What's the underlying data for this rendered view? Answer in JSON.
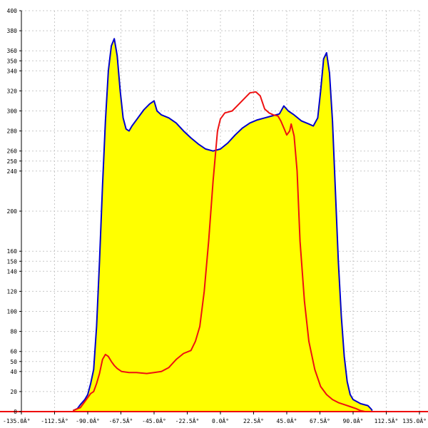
{
  "chart_data": {
    "type": "area",
    "title": "",
    "xlabel": "",
    "ylabel": "",
    "xlim": [
      -135,
      135
    ],
    "ylim": [
      0,
      400
    ],
    "grid": true,
    "x_ticks": [
      -135,
      -112.5,
      -90,
      -67.5,
      -45,
      -22.5,
      0,
      22.5,
      45,
      67.5,
      90,
      112.5,
      135
    ],
    "x_tick_labels": [
      "-135.0Â°",
      "-112.5Â°",
      "-90.0Â°",
      "-67.5Â°",
      "-45.0Â°",
      "-22.5Â°",
      "0.0Â°",
      "22.5Â°",
      "45.0Â°",
      "67.5Â°",
      "90.0Â°",
      "112.5Â°",
      "135.0Â°"
    ],
    "y_ticks": [
      0,
      20,
      40,
      50,
      60,
      80,
      100,
      120,
      140,
      150,
      160,
      200,
      240,
      250,
      260,
      280,
      300,
      320,
      340,
      350,
      360,
      380,
      400
    ],
    "y_tick_labels": [
      "0",
      "20",
      "40",
      "50",
      "60",
      "80",
      "100",
      "120",
      "140",
      "150",
      "160",
      "200",
      "240",
      "250",
      "260",
      "280",
      "300",
      "320",
      "340",
      "350",
      "360",
      "380",
      "400"
    ],
    "colors": {
      "fill": "#ffff00",
      "series_blue": "#0000cc",
      "series_red": "#ee1111",
      "grid": "#c8c8c8",
      "axis_x": "#ee0000",
      "axis_y": "#000000"
    },
    "series": [
      {
        "color": "#0000cc",
        "filled": true,
        "points": [
          [
            -100,
            1
          ],
          [
            -97,
            3
          ],
          [
            -95,
            7
          ],
          [
            -92,
            12
          ],
          [
            -90,
            17
          ],
          [
            -88,
            28
          ],
          [
            -86,
            42
          ],
          [
            -84,
            85
          ],
          [
            -82,
            150
          ],
          [
            -80,
            225
          ],
          [
            -78,
            290
          ],
          [
            -76,
            340
          ],
          [
            -74,
            365
          ],
          [
            -72,
            372
          ],
          [
            -70,
            355
          ],
          [
            -68,
            320
          ],
          [
            -66,
            293
          ],
          [
            -64,
            282
          ],
          [
            -62,
            280
          ],
          [
            -60,
            285
          ],
          [
            -56,
            293
          ],
          [
            -52,
            301
          ],
          [
            -48,
            307
          ],
          [
            -45,
            310
          ],
          [
            -43,
            300
          ],
          [
            -40,
            296
          ],
          [
            -35,
            293
          ],
          [
            -30,
            288
          ],
          [
            -25,
            280
          ],
          [
            -20,
            273
          ],
          [
            -15,
            267
          ],
          [
            -10,
            262
          ],
          [
            -5,
            260
          ],
          [
            0,
            262
          ],
          [
            5,
            268
          ],
          [
            10,
            276
          ],
          [
            15,
            283
          ],
          [
            20,
            288
          ],
          [
            25,
            291
          ],
          [
            30,
            293
          ],
          [
            35,
            295
          ],
          [
            40,
            297
          ],
          [
            43,
            305
          ],
          [
            46,
            300
          ],
          [
            50,
            296
          ],
          [
            55,
            290
          ],
          [
            60,
            287
          ],
          [
            63,
            285
          ],
          [
            66,
            293
          ],
          [
            68,
            320
          ],
          [
            70,
            352
          ],
          [
            72,
            358
          ],
          [
            74,
            338
          ],
          [
            76,
            290
          ],
          [
            78,
            220
          ],
          [
            80,
            150
          ],
          [
            82,
            95
          ],
          [
            84,
            55
          ],
          [
            86,
            30
          ],
          [
            88,
            17
          ],
          [
            90,
            12
          ],
          [
            95,
            8
          ],
          [
            100,
            6
          ],
          [
            102,
            3
          ],
          [
            103,
            1
          ]
        ]
      },
      {
        "color": "#ee1111",
        "filled": false,
        "points": [
          [
            -100,
            1
          ],
          [
            -95,
            4
          ],
          [
            -92,
            10
          ],
          [
            -88,
            18
          ],
          [
            -86,
            20
          ],
          [
            -84,
            28
          ],
          [
            -82,
            38
          ],
          [
            -80,
            52
          ],
          [
            -78,
            57
          ],
          [
            -76,
            55
          ],
          [
            -74,
            50
          ],
          [
            -72,
            46
          ],
          [
            -70,
            43
          ],
          [
            -67,
            40
          ],
          [
            -62,
            39
          ],
          [
            -57,
            39
          ],
          [
            -50,
            38
          ],
          [
            -45,
            39
          ],
          [
            -40,
            40
          ],
          [
            -35,
            44
          ],
          [
            -30,
            52
          ],
          [
            -25,
            58
          ],
          [
            -20,
            61
          ],
          [
            -17,
            70
          ],
          [
            -14,
            85
          ],
          [
            -11,
            120
          ],
          [
            -8,
            170
          ],
          [
            -5,
            230
          ],
          [
            -2,
            280
          ],
          [
            0,
            292
          ],
          [
            3,
            298
          ],
          [
            8,
            300
          ],
          [
            12,
            306
          ],
          [
            16,
            312
          ],
          [
            20,
            318
          ],
          [
            24,
            319
          ],
          [
            27,
            315
          ],
          [
            30,
            302
          ],
          [
            33,
            298
          ],
          [
            36,
            296
          ],
          [
            39,
            295
          ],
          [
            41,
            290
          ],
          [
            43,
            283
          ],
          [
            45,
            276
          ],
          [
            47,
            280
          ],
          [
            48,
            287
          ],
          [
            50,
            275
          ],
          [
            52,
            240
          ],
          [
            54,
            170
          ],
          [
            57,
            110
          ],
          [
            60,
            70
          ],
          [
            64,
            42
          ],
          [
            68,
            25
          ],
          [
            72,
            17
          ],
          [
            76,
            12
          ],
          [
            80,
            9
          ],
          [
            84,
            7
          ],
          [
            88,
            5
          ],
          [
            92,
            3
          ],
          [
            95,
            1
          ],
          [
            98,
            0
          ]
        ]
      }
    ]
  }
}
